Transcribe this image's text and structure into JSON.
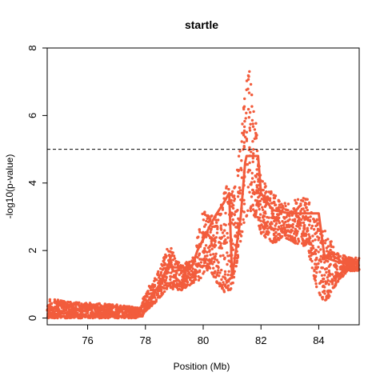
{
  "chart_data": {
    "type": "scatter",
    "title": "startle",
    "xlabel": "Position (Mb)",
    "ylabel": "-log10(p-value)",
    "xlim": [
      74.6,
      85.4
    ],
    "ylim": [
      -0.2,
      8.0
    ],
    "xticks": [
      76,
      78,
      80,
      82,
      84
    ],
    "yticks": [
      0,
      2,
      4,
      6,
      8
    ],
    "threshold": 5.0,
    "point_color": "#f25c3c",
    "threshold_color": "#000000",
    "envelope": {
      "x": [
        74.6,
        75.2,
        76.0,
        77.0,
        77.8,
        78.0,
        78.4,
        78.8,
        79.2,
        79.6,
        80.0,
        80.2,
        80.5,
        80.8,
        81.0,
        81.2,
        81.4,
        81.6,
        81.8,
        82.0,
        82.4,
        82.8,
        83.2,
        83.6,
        84.0,
        84.3,
        84.6,
        85.0,
        85.4
      ],
      "y_low": [
        0.0,
        0.0,
        0.0,
        0.0,
        0.0,
        0.2,
        0.5,
        0.9,
        0.8,
        1.0,
        1.2,
        1.5,
        1.0,
        0.7,
        0.9,
        1.8,
        2.8,
        3.2,
        3.0,
        2.5,
        2.2,
        2.4,
        2.2,
        2.1,
        0.6,
        0.5,
        1.0,
        1.4,
        1.4
      ],
      "y_high": [
        0.6,
        0.5,
        0.45,
        0.4,
        0.3,
        0.8,
        1.3,
        2.2,
        1.6,
        1.7,
        3.2,
        3.0,
        3.1,
        4.0,
        3.8,
        4.5,
        6.3,
        7.7,
        6.0,
        4.2,
        3.7,
        3.4,
        3.5,
        3.6,
        2.8,
        2.5,
        2.0,
        1.8,
        1.8
      ]
    },
    "lod_curve": {
      "x": [
        74.6,
        77.9,
        78.0,
        78.5,
        78.8,
        79.0,
        79.6,
        79.8,
        80.1,
        80.4,
        80.7,
        80.9,
        81.0,
        81.3,
        81.45,
        81.5,
        81.9,
        82.0,
        82.4,
        83.0,
        83.5,
        84.0,
        84.2,
        84.7,
        85.4
      ],
      "y": [
        0.05,
        0.05,
        0.4,
        1.0,
        1.6,
        1.5,
        1.5,
        2.0,
        2.5,
        3.0,
        3.4,
        3.7,
        1.2,
        3.0,
        4.6,
        4.8,
        4.8,
        3.7,
        3.2,
        3.1,
        3.1,
        3.1,
        1.8,
        1.65,
        1.65
      ]
    }
  }
}
